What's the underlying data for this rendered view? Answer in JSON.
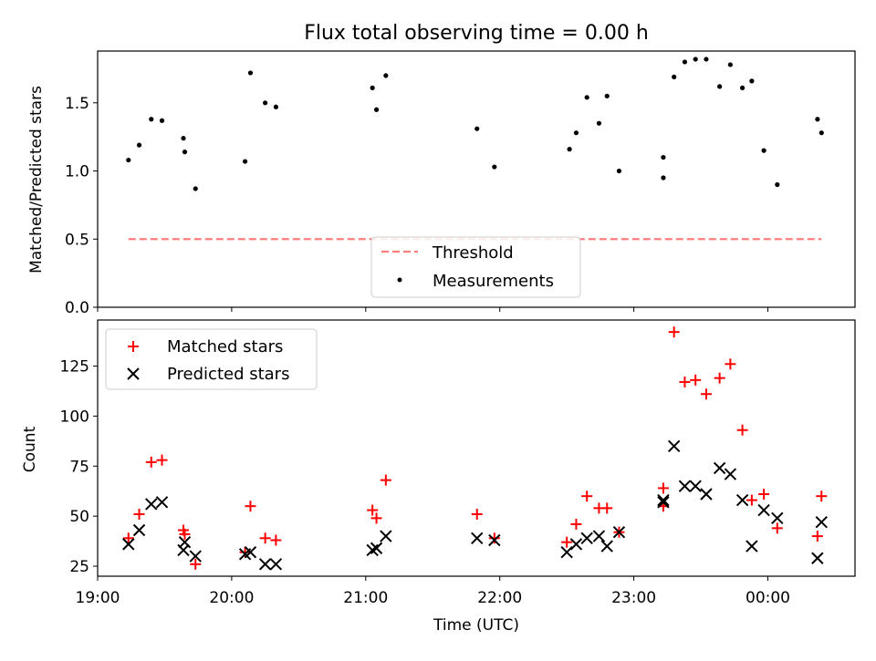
{
  "chart_data": [
    {
      "type": "scatter",
      "title": "Flux total observing time = 0.00 h",
      "xlabel": "",
      "ylabel": "Matched/Predicted stars",
      "xlim": [
        19.0,
        24.65
      ],
      "ylim": [
        0,
        1.88
      ],
      "yticks": [
        0.0,
        0.5,
        1.0,
        1.5
      ],
      "ytick_labels": [
        "0.0",
        "0.5",
        "1.0",
        "1.5"
      ],
      "threshold": {
        "name": "Threshold",
        "y": 0.5,
        "x_range": [
          19.23,
          24.4
        ],
        "color": "#ff7f7f"
      },
      "legend_position": "lower-center",
      "series": [
        {
          "name": "Measurements",
          "color": "#000000",
          "x": [
            19.23,
            19.31,
            19.4,
            19.48,
            19.64,
            19.65,
            19.73,
            20.1,
            20.14,
            20.25,
            20.33,
            21.05,
            21.08,
            21.15,
            21.83,
            21.96,
            22.52,
            22.57,
            22.65,
            22.74,
            22.8,
            22.89,
            23.22,
            23.22,
            23.3,
            23.38,
            23.46,
            23.54,
            23.64,
            23.72,
            23.81,
            23.88,
            23.97,
            24.07,
            24.37,
            24.4
          ],
          "y": [
            1.08,
            1.19,
            1.38,
            1.37,
            1.24,
            1.14,
            0.87,
            1.07,
            1.72,
            1.5,
            1.47,
            1.61,
            1.45,
            1.7,
            1.31,
            1.03,
            1.16,
            1.28,
            1.54,
            1.35,
            1.55,
            1.0,
            0.95,
            1.1,
            1.69,
            1.8,
            1.82,
            1.82,
            1.62,
            1.78,
            1.61,
            1.66,
            1.15,
            0.9,
            1.38,
            1.28
          ]
        }
      ]
    },
    {
      "type": "scatter",
      "title": "",
      "xlabel": "Time (UTC)",
      "ylabel": "Count",
      "xlim": [
        19.0,
        24.65
      ],
      "ylim": [
        20,
        148
      ],
      "yticks": [
        25,
        50,
        75,
        100,
        125
      ],
      "ytick_labels": [
        "25",
        "50",
        "75",
        "100",
        "125"
      ],
      "xticks": [
        19,
        20,
        21,
        22,
        23,
        24
      ],
      "xtick_labels": [
        "19:00",
        "20:00",
        "21:00",
        "22:00",
        "23:00",
        "00:00"
      ],
      "legend_position": "upper-left",
      "series": [
        {
          "name": "Matched stars",
          "marker": "plus",
          "color": "#ff0000",
          "x": [
            19.23,
            19.31,
            19.4,
            19.48,
            19.64,
            19.65,
            19.73,
            20.1,
            20.14,
            20.25,
            20.33,
            21.05,
            21.08,
            21.15,
            21.83,
            21.96,
            22.5,
            22.57,
            22.65,
            22.74,
            22.8,
            22.89,
            23.22,
            23.22,
            23.3,
            23.38,
            23.46,
            23.54,
            23.64,
            23.72,
            23.81,
            23.88,
            23.97,
            24.07,
            24.37,
            24.4
          ],
          "y": [
            39,
            51,
            77,
            78,
            43,
            41,
            26,
            32,
            55,
            39,
            38,
            53,
            49,
            68,
            51,
            39,
            37,
            46,
            60,
            54,
            54,
            42,
            55,
            64,
            142,
            117,
            118,
            111,
            119,
            126,
            93,
            58,
            61,
            44,
            40,
            60
          ]
        },
        {
          "name": "Predicted stars",
          "marker": "x",
          "color": "#000000",
          "x": [
            19.23,
            19.31,
            19.4,
            19.48,
            19.64,
            19.65,
            19.73,
            20.1,
            20.14,
            20.25,
            20.33,
            21.05,
            21.08,
            21.15,
            21.83,
            21.96,
            22.5,
            22.57,
            22.65,
            22.74,
            22.8,
            22.89,
            23.22,
            23.22,
            23.3,
            23.38,
            23.46,
            23.54,
            23.64,
            23.72,
            23.81,
            23.88,
            23.97,
            24.07,
            24.37,
            24.4
          ],
          "y": [
            36,
            43,
            56,
            57,
            33,
            37,
            30,
            31,
            32,
            26,
            26,
            33,
            34,
            40,
            39,
            38,
            32,
            36,
            39,
            40,
            35,
            42,
            58,
            57,
            85,
            65,
            65,
            61,
            74,
            71,
            58,
            35,
            53,
            49,
            29,
            47
          ]
        }
      ]
    }
  ]
}
